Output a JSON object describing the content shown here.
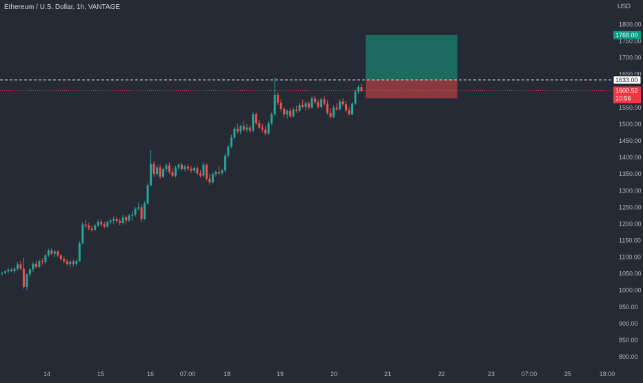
{
  "header": {
    "symbol_title": "Ethereum / U.S. Dollar, 1h, VANTAGE",
    "currency": "USD"
  },
  "colors": {
    "background": "#262a35",
    "up": "#26a69a",
    "down": "#ef5350",
    "text": "#b2b5be",
    "target_zone": "#1b6b60",
    "stop_zone": "#8a3a3f",
    "price_tag_current": "#f23645",
    "price_tag_target": "#089981"
  },
  "chart_data": {
    "type": "candlestick",
    "y_axis": {
      "ticks": [
        "800.00",
        "850.00",
        "900.00",
        "950.00",
        "1000.00",
        "1050.00",
        "1100.00",
        "1150.00",
        "1200.00",
        "1250.00",
        "1300.00",
        "1350.00",
        "1400.00",
        "1450.00",
        "1500.00",
        "1550.00",
        "1600.00",
        "1650.00",
        "1700.00",
        "1750.00",
        "1800.00"
      ],
      "range": [
        775,
        1875
      ]
    },
    "x_axis": {
      "ticks": [
        "14",
        "15",
        "16",
        "07:00",
        "18",
        "19",
        "20",
        "21",
        "22",
        "23",
        "07:00",
        "25",
        "18:00"
      ]
    },
    "price_labels": {
      "target": "1768.00",
      "entry": "1633.00",
      "current": "1600.52",
      "countdown": "10:56"
    },
    "levels": {
      "entry": 1633.0,
      "current": 1600.52,
      "target": 1768.0,
      "stop": 1578.0
    },
    "position": {
      "target_price": 1768.0,
      "entry_price": 1633.0,
      "stop_price": 1578.0
    },
    "candles": [
      [
        1050,
        1056,
        1045,
        1052
      ],
      [
        1052,
        1060,
        1048,
        1057
      ],
      [
        1057,
        1066,
        1052,
        1062
      ],
      [
        1062,
        1068,
        1055,
        1058
      ],
      [
        1058,
        1070,
        1050,
        1065
      ],
      [
        1065,
        1085,
        1058,
        1078
      ],
      [
        1078,
        1088,
        1060,
        1065
      ],
      [
        1065,
        1098,
        1005,
        1010
      ],
      [
        1010,
        1052,
        1000,
        1048
      ],
      [
        1048,
        1068,
        1040,
        1063
      ],
      [
        1063,
        1085,
        1055,
        1080
      ],
      [
        1080,
        1088,
        1066,
        1070
      ],
      [
        1070,
        1092,
        1066,
        1088
      ],
      [
        1088,
        1096,
        1078,
        1085
      ],
      [
        1085,
        1110,
        1080,
        1105
      ],
      [
        1105,
        1125,
        1100,
        1120
      ],
      [
        1120,
        1128,
        1106,
        1110
      ],
      [
        1110,
        1122,
        1100,
        1117
      ],
      [
        1117,
        1120,
        1100,
        1105
      ],
      [
        1105,
        1110,
        1090,
        1094
      ],
      [
        1094,
        1102,
        1082,
        1088
      ],
      [
        1088,
        1094,
        1074,
        1079
      ],
      [
        1079,
        1090,
        1070,
        1086
      ],
      [
        1086,
        1092,
        1072,
        1080
      ],
      [
        1080,
        1094,
        1074,
        1088
      ],
      [
        1088,
        1148,
        1085,
        1142
      ],
      [
        1142,
        1205,
        1138,
        1198
      ],
      [
        1198,
        1212,
        1188,
        1195
      ],
      [
        1195,
        1204,
        1180,
        1187
      ],
      [
        1187,
        1195,
        1176,
        1182
      ],
      [
        1182,
        1200,
        1178,
        1195
      ],
      [
        1195,
        1212,
        1190,
        1206
      ],
      [
        1206,
        1214,
        1192,
        1198
      ],
      [
        1198,
        1206,
        1186,
        1192
      ],
      [
        1192,
        1210,
        1188,
        1205
      ],
      [
        1205,
        1215,
        1198,
        1210
      ],
      [
        1210,
        1222,
        1200,
        1215
      ],
      [
        1215,
        1222,
        1204,
        1209
      ],
      [
        1209,
        1216,
        1196,
        1203
      ],
      [
        1203,
        1228,
        1198,
        1220
      ],
      [
        1220,
        1225,
        1200,
        1210
      ],
      [
        1210,
        1230,
        1205,
        1225
      ],
      [
        1225,
        1238,
        1210,
        1228
      ],
      [
        1228,
        1250,
        1222,
        1245
      ],
      [
        1245,
        1264,
        1240,
        1250
      ],
      [
        1250,
        1258,
        1205,
        1215
      ],
      [
        1215,
        1268,
        1212,
        1262
      ],
      [
        1262,
        1322,
        1258,
        1316
      ],
      [
        1316,
        1422,
        1312,
        1380
      ],
      [
        1380,
        1388,
        1342,
        1350
      ],
      [
        1350,
        1376,
        1345,
        1370
      ],
      [
        1370,
        1378,
        1335,
        1342
      ],
      [
        1342,
        1370,
        1338,
        1365
      ],
      [
        1365,
        1382,
        1356,
        1376
      ],
      [
        1376,
        1385,
        1350,
        1356
      ],
      [
        1356,
        1368,
        1340,
        1345
      ],
      [
        1345,
        1375,
        1340,
        1370
      ],
      [
        1370,
        1382,
        1362,
        1378
      ],
      [
        1378,
        1384,
        1360,
        1365
      ],
      [
        1365,
        1378,
        1358,
        1372
      ],
      [
        1372,
        1380,
        1360,
        1366
      ],
      [
        1366,
        1375,
        1354,
        1360
      ],
      [
        1360,
        1372,
        1352,
        1368
      ],
      [
        1368,
        1374,
        1346,
        1352
      ],
      [
        1352,
        1362,
        1340,
        1345
      ],
      [
        1345,
        1385,
        1340,
        1378
      ],
      [
        1378,
        1382,
        1330,
        1336
      ],
      [
        1336,
        1350,
        1318,
        1325
      ],
      [
        1325,
        1356,
        1322,
        1350
      ],
      [
        1350,
        1362,
        1342,
        1356
      ],
      [
        1356,
        1374,
        1348,
        1352
      ],
      [
        1352,
        1366,
        1346,
        1361
      ],
      [
        1361,
        1412,
        1356,
        1405
      ],
      [
        1405,
        1438,
        1398,
        1432
      ],
      [
        1432,
        1468,
        1428,
        1460
      ],
      [
        1460,
        1492,
        1455,
        1486
      ],
      [
        1486,
        1502,
        1472,
        1478
      ],
      [
        1478,
        1498,
        1470,
        1494
      ],
      [
        1494,
        1510,
        1478,
        1484
      ],
      [
        1484,
        1500,
        1476,
        1490
      ],
      [
        1490,
        1496,
        1474,
        1480
      ],
      [
        1480,
        1538,
        1476,
        1530
      ],
      [
        1530,
        1534,
        1498,
        1504
      ],
      [
        1504,
        1512,
        1485,
        1490
      ],
      [
        1490,
        1500,
        1476,
        1484
      ],
      [
        1484,
        1495,
        1466,
        1472
      ],
      [
        1472,
        1510,
        1468,
        1503
      ],
      [
        1503,
        1535,
        1498,
        1530
      ],
      [
        1530,
        1640,
        1525,
        1588
      ],
      [
        1588,
        1596,
        1558,
        1565
      ],
      [
        1565,
        1574,
        1538,
        1546
      ],
      [
        1546,
        1552,
        1522,
        1530
      ],
      [
        1530,
        1545,
        1516,
        1540
      ],
      [
        1540,
        1548,
        1518,
        1524
      ],
      [
        1524,
        1550,
        1520,
        1544
      ],
      [
        1544,
        1556,
        1534,
        1540
      ],
      [
        1540,
        1565,
        1536,
        1558
      ],
      [
        1558,
        1574,
        1548,
        1552
      ],
      [
        1552,
        1570,
        1540,
        1563
      ],
      [
        1563,
        1568,
        1544,
        1550
      ],
      [
        1550,
        1584,
        1546,
        1578
      ],
      [
        1578,
        1586,
        1560,
        1566
      ],
      [
        1566,
        1574,
        1546,
        1552
      ],
      [
        1552,
        1580,
        1548,
        1575
      ],
      [
        1575,
        1584,
        1556,
        1562
      ],
      [
        1562,
        1572,
        1528,
        1534
      ],
      [
        1534,
        1548,
        1516,
        1522
      ],
      [
        1522,
        1556,
        1518,
        1550
      ],
      [
        1550,
        1562,
        1540,
        1545
      ],
      [
        1545,
        1574,
        1540,
        1568
      ],
      [
        1568,
        1578,
        1555,
        1560
      ],
      [
        1560,
        1570,
        1536,
        1542
      ],
      [
        1542,
        1552,
        1526,
        1530
      ],
      [
        1530,
        1566,
        1527,
        1562
      ],
      [
        1562,
        1604,
        1558,
        1598
      ],
      [
        1598,
        1618,
        1592,
        1612
      ],
      [
        1612,
        1622,
        1596,
        1601
      ]
    ]
  }
}
